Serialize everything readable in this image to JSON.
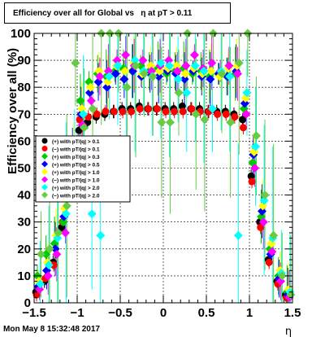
{
  "title": "Efficiency over all for Global vs   η at pT > 0.11",
  "footer": "Mon May  8 15:32:48 2017",
  "chart_data": {
    "type": "scatter",
    "xlabel": "η",
    "ylabel": "Efficiency over all (%)",
    "xlim": [
      -1.5,
      1.5
    ],
    "ylim": [
      0,
      100
    ],
    "x_ticks": [
      "−1.5",
      "−1",
      "−0.5",
      "0",
      "0.5",
      "1",
      "1.5"
    ],
    "y_ticks": [
      "0",
      "10",
      "20",
      "30",
      "40",
      "50",
      "60",
      "70",
      "80",
      "90",
      "100"
    ],
    "grid": true,
    "legend_position": "left-middle",
    "series": [
      {
        "name": "(+) with pT/|q| > 0.1",
        "color": "#000000",
        "marker": "circle",
        "x": [
          -1.45,
          -1.35,
          -1.25,
          -1.15,
          -1.05,
          -0.95,
          -0.85,
          -0.75,
          -0.65,
          -0.55,
          -0.45,
          -0.35,
          -0.25,
          -0.15,
          -0.05,
          0.05,
          0.15,
          0.25,
          0.35,
          0.45,
          0.55,
          0.65,
          0.75,
          0.85,
          0.95,
          1.05,
          1.15,
          1.25,
          1.35,
          1.45
        ],
        "y": [
          4,
          8,
          15,
          28,
          48,
          64,
          67,
          69,
          70,
          71,
          72,
          72,
          73,
          72,
          72,
          72,
          72,
          73,
          72,
          72,
          71,
          71,
          71,
          70,
          68,
          47,
          30,
          16,
          8,
          3
        ]
      },
      {
        "name": "(−) with pT/|q| > 0.1",
        "color": "#ff0000",
        "marker": "circle",
        "x": [
          -1.45,
          -1.35,
          -1.25,
          -1.15,
          -1.05,
          -0.95,
          -0.85,
          -0.75,
          -0.65,
          -0.55,
          -0.45,
          -0.35,
          -0.25,
          -0.15,
          -0.05,
          0.05,
          0.15,
          0.25,
          0.35,
          0.45,
          0.55,
          0.65,
          0.75,
          0.85,
          0.95,
          1.05,
          1.15,
          1.25,
          1.35,
          1.45
        ],
        "y": [
          3,
          9,
          14,
          30,
          50,
          68,
          69,
          70,
          71,
          71,
          71,
          71,
          72,
          72,
          72,
          71,
          71,
          71,
          72,
          71,
          71,
          70,
          70,
          69,
          65,
          45,
          28,
          15,
          7,
          2
        ]
      },
      {
        "name": "(+) with pT/|q| > 0.3",
        "color": "#00cc00",
        "marker": "diamond",
        "x": [
          -1.45,
          -1.35,
          -1.25,
          -1.15,
          -1.05,
          -0.95,
          -0.85,
          -0.75,
          -0.65,
          -0.55,
          -0.45,
          -0.35,
          -0.25,
          -0.15,
          -0.05,
          0.05,
          0.15,
          0.25,
          0.35,
          0.45,
          0.55,
          0.65,
          0.75,
          0.85,
          0.95,
          1.05,
          1.15,
          1.25,
          1.35,
          1.45
        ],
        "y": [
          10,
          18,
          22,
          30,
          55,
          75,
          82,
          85,
          84,
          86,
          87,
          86,
          88,
          86,
          87,
          85,
          86,
          87,
          85,
          86,
          84,
          85,
          84,
          85,
          72,
          52,
          32,
          20,
          10,
          4
        ]
      },
      {
        "name": "(+) with pT/|q| > 0.5",
        "color": "#0000ff",
        "marker": "diamond",
        "x": [
          -1.45,
          -1.35,
          -1.25,
          -1.15,
          -1.05,
          -0.95,
          -0.85,
          -0.75,
          -0.65,
          -0.55,
          -0.45,
          -0.35,
          -0.25,
          -0.15,
          -0.05,
          0.05,
          0.15,
          0.25,
          0.35,
          0.45,
          0.55,
          0.65,
          0.75,
          0.85,
          0.95,
          1.05,
          1.15,
          1.25,
          1.35,
          1.45
        ],
        "y": [
          6,
          12,
          20,
          32,
          58,
          70,
          78,
          82,
          80,
          85,
          83,
          86,
          84,
          85,
          84,
          86,
          85,
          83,
          86,
          84,
          83,
          85,
          84,
          86,
          74,
          55,
          34,
          18,
          9,
          3
        ]
      },
      {
        "name": "(+) with pT/|q| > 1.0",
        "color": "#ffff00",
        "marker": "diamond",
        "x": [
          -1.45,
          -1.35,
          -1.25,
          -1.15,
          -1.05,
          -0.95,
          -0.85,
          -0.75,
          -0.65,
          -0.55,
          -0.45,
          -0.35,
          -0.25,
          -0.15,
          -0.05,
          0.05,
          0.15,
          0.25,
          0.35,
          0.45,
          0.55,
          0.65,
          0.75,
          0.85,
          0.95,
          1.05,
          1.15,
          1.25,
          1.35,
          1.45
        ],
        "y": [
          8,
          15,
          25,
          35,
          60,
          72,
          80,
          86,
          82,
          88,
          86,
          89,
          85,
          88,
          86,
          87,
          88,
          85,
          87,
          85,
          86,
          84,
          87,
          88,
          76,
          56,
          36,
          22,
          12,
          5
        ]
      },
      {
        "name": "(−) with pT/|q| > 1.0",
        "color": "#ff00ff",
        "marker": "diamond",
        "x": [
          -1.45,
          -1.35,
          -1.25,
          -1.15,
          -1.05,
          -0.95,
          -0.85,
          -0.75,
          -0.65,
          -0.55,
          -0.45,
          -0.35,
          -0.25,
          -0.15,
          -0.05,
          0.05,
          0.15,
          0.25,
          0.35,
          0.45,
          0.55,
          0.65,
          0.75,
          0.85,
          0.95,
          1.05,
          1.15,
          1.25,
          1.35,
          1.45
        ],
        "y": [
          5,
          10,
          18,
          26,
          52,
          66,
          75,
          84,
          86,
          90,
          92,
          88,
          90,
          86,
          88,
          90,
          86,
          88,
          92,
          87,
          89,
          86,
          88,
          85,
          70,
          50,
          30,
          19,
          8,
          2
        ]
      },
      {
        "name": "(+) with pT/|q| > 2.0",
        "color": "#00ffff",
        "marker": "diamond",
        "x": [
          -1.45,
          -1.35,
          -1.25,
          -1.15,
          -1.05,
          -0.95,
          -0.85,
          -0.75,
          -0.65,
          -0.55,
          -0.45,
          -0.35,
          -0.25,
          -0.15,
          -0.05,
          0.05,
          0.15,
          0.25,
          0.35,
          0.45,
          0.55,
          0.65,
          0.75,
          0.85,
          0.95,
          1.05,
          1.15,
          1.25,
          1.35,
          1.45
        ],
        "y": [
          7,
          14,
          24,
          33,
          56,
          70,
          33,
          25,
          84,
          88,
          80,
          90,
          86,
          84,
          89,
          88,
          83,
          78,
          88,
          86,
          72,
          86,
          84,
          25,
          78,
          58,
          38,
          24,
          11,
          4
        ]
      },
      {
        "name": "(−) with pT/|q| > 2.0",
        "color": "#66cc44",
        "marker": "diamond",
        "x": [
          -1.45,
          -1.35,
          -1.25,
          -1.15,
          -1.05,
          -0.95,
          -0.85,
          -0.75,
          -0.65,
          -0.55,
          -0.45,
          -0.35,
          -0.25,
          -0.15,
          -0.05,
          0.05,
          0.15,
          0.25,
          0.35,
          0.45,
          0.55,
          0.65,
          0.75,
          0.85,
          0.95,
          1.05,
          1.15,
          1.25,
          1.35,
          1.45
        ],
        "y": [
          18,
          20,
          26,
          36,
          89,
          65,
          72,
          100,
          100,
          100,
          80,
          88,
          85,
          84,
          67,
          67,
          78,
          100,
          70,
          68,
          100,
          85,
          67,
          89,
          100,
          62,
          40,
          25,
          10,
          3
        ]
      }
    ]
  }
}
